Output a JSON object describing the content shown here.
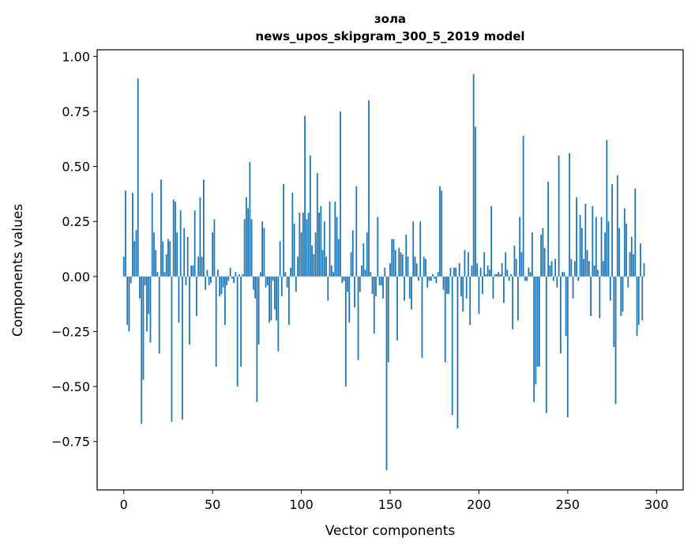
{
  "chart_data": {
    "type": "bar",
    "title": "зола",
    "subtitle": "news_upos_skipgram_300_5_2019 model",
    "xlabel": "Vector components",
    "ylabel": "Components values",
    "xlim": [
      -15,
      315
    ],
    "ylim": [
      -0.97,
      1.03
    ],
    "xticks": [
      0,
      50,
      100,
      150,
      200,
      250,
      300
    ],
    "xtick_labels": [
      "0",
      "50",
      "100",
      "150",
      "200",
      "250",
      "300"
    ],
    "yticks": [
      -0.75,
      -0.5,
      -0.25,
      0.0,
      0.25,
      0.5,
      0.75,
      1.0
    ],
    "ytick_labels": [
      "−0.75",
      "−0.50",
      "−0.25",
      "0.00",
      "0.25",
      "0.50",
      "0.75",
      "1.00"
    ],
    "bar_color": "#1f77b4",
    "values": [
      0.09,
      0.39,
      -0.22,
      -0.25,
      -0.03,
      0.38,
      0.16,
      0.21,
      0.9,
      -0.1,
      -0.67,
      -0.47,
      -0.04,
      -0.25,
      -0.17,
      -0.3,
      0.38,
      0.2,
      0.12,
      0.02,
      -0.35,
      0.44,
      0.16,
      0.02,
      0.1,
      0.17,
      0.16,
      -0.66,
      0.35,
      0.34,
      0.2,
      -0.21,
      0.3,
      -0.65,
      0.22,
      -0.04,
      0.18,
      -0.31,
      0.05,
      0.05,
      0.3,
      -0.18,
      0.09,
      0.36,
      0.09,
      0.44,
      -0.06,
      0.03,
      -0.04,
      -0.03,
      0.2,
      0.26,
      -0.41,
      0.03,
      -0.09,
      -0.08,
      -0.05,
      -0.22,
      -0.04,
      -0.02,
      0.04,
      -0.01,
      -0.03,
      0.02,
      -0.5,
      0.01,
      -0.41,
      0.01,
      0.26,
      0.36,
      0.31,
      0.52,
      0.26,
      -0.06,
      -0.1,
      -0.57,
      -0.31,
      0.02,
      0.25,
      0.22,
      -0.05,
      -0.04,
      -0.21,
      -0.2,
      -0.02,
      -0.15,
      -0.2,
      -0.34,
      0.16,
      -0.09,
      0.42,
      0.02,
      -0.05,
      -0.22,
      0.04,
      0.38,
      0.24,
      -0.07,
      0.09,
      0.29,
      0.2,
      0.29,
      0.73,
      0.26,
      0.29,
      0.55,
      0.14,
      0.1,
      0.2,
      0.47,
      0.29,
      0.32,
      0.12,
      0.25,
      0.09,
      -0.11,
      0.34,
      0.05,
      0.02,
      0.34,
      0.27,
      0.17,
      0.75,
      -0.03,
      -0.02,
      -0.5,
      -0.07,
      -0.21,
      0.11,
      0.21,
      -0.14,
      0.41,
      -0.38,
      -0.07,
      0.05,
      0.15,
      0.03,
      0.2,
      0.8,
      0.02,
      -0.08,
      -0.26,
      -0.09,
      0.27,
      -0.04,
      -0.04,
      -0.1,
      0.04,
      -0.88,
      -0.39,
      0.06,
      0.17,
      0.17,
      0.12,
      -0.29,
      0.13,
      0.11,
      0.1,
      -0.11,
      0.19,
      0.09,
      -0.1,
      -0.15,
      0.25,
      0.09,
      0.06,
      -0.02,
      0.25,
      -0.37,
      0.09,
      0.08,
      -0.05,
      -0.02,
      -0.02,
      0.01,
      -0.01,
      -0.03,
      0.02,
      0.41,
      0.39,
      -0.06,
      -0.39,
      -0.08,
      -0.08,
      0.04,
      -0.63,
      0.04,
      0.04,
      -0.69,
      0.06,
      -0.09,
      -0.16,
      0.12,
      -0.1,
      0.11,
      -0.22,
      0.05,
      0.92,
      0.68,
      0.06,
      -0.17,
      0.04,
      -0.08,
      0.11,
      0.01,
      0.05,
      0.03,
      0.32,
      -0.1,
      0.01,
      0.01,
      0.02,
      0.01,
      0.06,
      -0.12,
      0.11,
      0.03,
      -0.02,
      0.01,
      -0.24,
      0.14,
      0.08,
      -0.2,
      0.27,
      0.11,
      0.64,
      -0.02,
      -0.02,
      0.04,
      0.02,
      0.2,
      -0.57,
      -0.49,
      -0.41,
      -0.41,
      0.19,
      0.22,
      0.13,
      -0.62,
      0.43,
      0.05,
      0.07,
      -0.02,
      0.08,
      -0.05,
      0.55,
      -0.35,
      0.02,
      0.02,
      -0.27,
      -0.64,
      0.56,
      0.08,
      -0.1,
      0.07,
      0.36,
      -0.02,
      0.28,
      0.22,
      0.08,
      0.33,
      0.12,
      0.07,
      -0.18,
      0.32,
      0.05,
      0.27,
      0.03,
      -0.19,
      0.27,
      0.07,
      0.2,
      0.62,
      0.25,
      -0.11,
      0.42,
      -0.32,
      -0.58,
      0.46,
      0.22,
      -0.18,
      -0.16,
      0.31,
      0.24,
      -0.05,
      0.11,
      0.18,
      0.1,
      0.4,
      -0.27,
      -0.22,
      0.15,
      -0.2,
      0.06
    ]
  }
}
